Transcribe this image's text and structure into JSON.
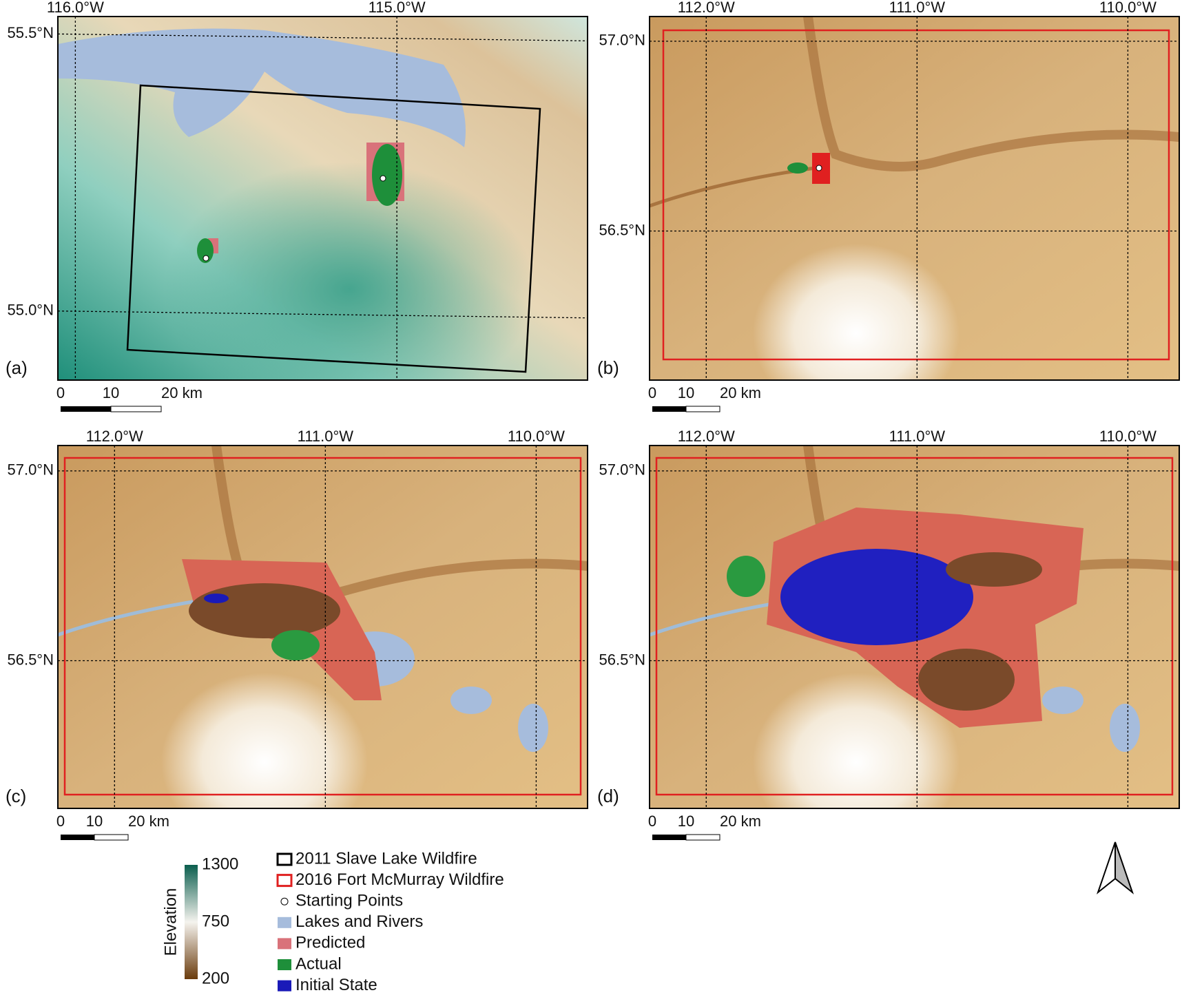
{
  "panels": [
    {
      "label": "(a)",
      "lon_ticks": [
        "116.0°W",
        "115.0°W"
      ],
      "lat_ticks": [
        "55.5°N",
        "55.0°N"
      ],
      "scale": [
        "0",
        "10",
        "20 km"
      ]
    },
    {
      "label": "(b)",
      "lon_ticks": [
        "112.0°W",
        "111.0°W",
        "110.0°W"
      ],
      "lat_ticks": [
        "57.0°N",
        "56.5°N"
      ],
      "scale": [
        "0",
        "10",
        "20 km"
      ]
    },
    {
      "label": "(c)",
      "lon_ticks": [
        "112.0°W",
        "111.0°W",
        "110.0°W"
      ],
      "lat_ticks": [
        "57.0°N",
        "56.5°N"
      ],
      "scale": [
        "0",
        "10",
        "20 km"
      ]
    },
    {
      "label": "(d)",
      "lon_ticks": [
        "112.0°W",
        "111.0°W",
        "110.0°W"
      ],
      "lat_ticks": [
        "57.0°N",
        "56.5°N"
      ],
      "scale": [
        "0",
        "10",
        "20 km"
      ]
    }
  ],
  "legend": [
    "2011 Slave Lake Wildfire",
    "2016 Fort McMurray Wildfire",
    "Starting Points",
    "Lakes and Rivers",
    "Predicted",
    "Actual",
    "Initial State"
  ],
  "colorbar": {
    "title": "Elevation",
    "ticks": [
      1300,
      750,
      200
    ]
  }
}
